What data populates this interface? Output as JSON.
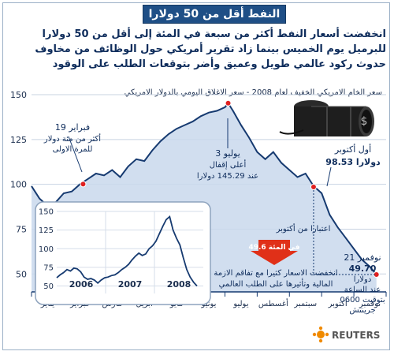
{
  "title": "النفط أقل من 50 دولارا",
  "headline": "انخفضت أسعار النفط أكثر من سبعة في المئة إلى أقل من 50 دولارا للبرميل يوم الخميس بينما زاد تقرير أمريكي حول الوظائف من مخاوف حدوث ركود عالمي طويل وعميق وأضر بتوقعات الطلب على الوقود",
  "subtitle": "سعر الخام الامريكي الخفيف لعام 2008 - سعر الاغلاق اليومي بالدولار الامريكي",
  "annotations": {
    "feb_date": "19 فبراير",
    "feb_text1": "أكثر من مئة دولار",
    "feb_text2": "للمرة الاولى",
    "jul_date": "3 يوليو",
    "jul_text1": "أعلى إقفال",
    "jul_text2": "عند 145.29 دولارا",
    "oct_date": "أول أكتوبر",
    "oct_value": "98.53 دولارا",
    "drop_label": "اعتبارا من أكتوبر",
    "drop_pct": "49.6 في المئة",
    "drop_text1": "انخفضت الاسعار كثيرا مع تفاقم الازمة",
    "drop_text2": "المالية وتأثيرها على الطلب العالمي",
    "nov_date": "21 نوفمبر",
    "nov_value1": "49.70",
    "nov_value2": "دولارا",
    "nov_text1": "عند الساعة",
    "nov_text2": "0600 بتوقيت",
    "nov_text3": "جرينتش"
  },
  "brand": "REUTERS",
  "colors": {
    "title_bg": "#1f4f86",
    "line": "#163a70",
    "fill": "#c9d8ec",
    "marker": "#e02020",
    "arrow": "#e03018"
  },
  "chart_data": {
    "type": "area",
    "y_ticks": [
      "150",
      "125",
      "100",
      "75",
      "50"
    ],
    "ylim": [
      40,
      150
    ],
    "months": [
      "يناير",
      "فبراير",
      "مارس",
      "ابريل",
      "مايو",
      "يونيو",
      "يوليو",
      "أغسطس",
      "سبتمبر",
      "اكتوبر",
      "نوفمبر"
    ],
    "series": [
      {
        "x": [
          0,
          0.25,
          0.5,
          0.75,
          1.0,
          1.25,
          1.5,
          1.75,
          2.0,
          2.25,
          2.5,
          2.75,
          3.0,
          3.25,
          3.5,
          3.75,
          4.0,
          4.25,
          4.5,
          4.75,
          5.0,
          5.25,
          5.5,
          5.75,
          6.0,
          6.1,
          6.25,
          6.5,
          6.75,
          7.0,
          7.25,
          7.5,
          7.75,
          8.0,
          8.25,
          8.5,
          8.75,
          9.0,
          9.25,
          9.5,
          9.75,
          10.0,
          10.25,
          10.5,
          10.7
        ],
        "values": [
          99,
          92,
          88,
          90,
          95,
          96,
          100,
          103,
          106,
          105,
          108,
          104,
          110,
          114,
          113,
          119,
          124,
          128,
          131,
          133,
          135,
          138,
          140,
          141,
          143,
          145.29,
          141,
          133,
          126,
          118,
          114,
          118,
          112,
          108,
          104,
          106,
          99,
          95,
          83,
          76,
          70,
          64,
          58,
          54,
          49.7
        ]
      }
    ],
    "markers": [
      {
        "name": "feb-19",
        "x": 1.6,
        "y": 100.1
      },
      {
        "name": "jul-3",
        "x": 6.1,
        "y": 145.29
      },
      {
        "name": "oct-1",
        "x": 8.75,
        "y": 98.53
      },
      {
        "name": "nov-21",
        "x": 10.7,
        "y": 49.7
      }
    ],
    "inset": {
      "type": "line",
      "y_ticks": [
        "150",
        "125",
        "100",
        "75",
        "50"
      ],
      "ylim": [
        40,
        150
      ],
      "years": [
        "2006",
        "2007",
        "2008"
      ],
      "values": [
        61,
        65,
        68,
        72,
        70,
        74,
        73,
        69,
        62,
        59,
        60,
        58,
        54,
        58,
        61,
        62,
        64,
        65,
        68,
        72,
        75,
        79,
        85,
        90,
        94,
        91,
        93,
        100,
        104,
        110,
        120,
        130,
        139,
        143,
        125,
        114,
        105,
        88,
        72,
        62,
        55,
        50
      ]
    }
  }
}
